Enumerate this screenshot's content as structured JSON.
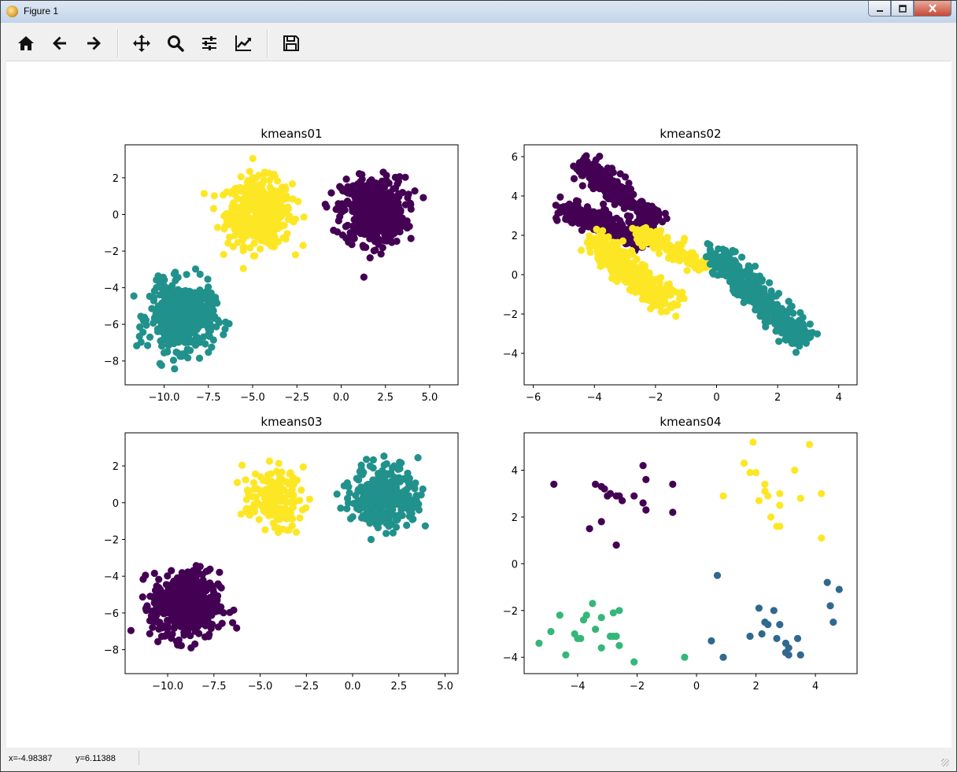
{
  "window": {
    "title": "Figure 1",
    "buttons": [
      "minimize",
      "maximize",
      "close"
    ]
  },
  "toolbar": {
    "items": [
      {
        "name": "home-icon",
        "tooltip": "Home"
      },
      {
        "name": "back-arrow-icon",
        "tooltip": "Back"
      },
      {
        "name": "forward-arrow-icon",
        "tooltip": "Forward"
      },
      {
        "name": "pan-icon",
        "tooltip": "Pan"
      },
      {
        "name": "zoom-icon",
        "tooltip": "Zoom"
      },
      {
        "name": "subplots-icon",
        "tooltip": "Subplots"
      },
      {
        "name": "customize-icon",
        "tooltip": "Customize"
      },
      {
        "name": "save-icon",
        "tooltip": "Save"
      }
    ]
  },
  "status": {
    "x": "x=-4.98387",
    "y": "y=6.11388"
  },
  "colors": {
    "viridis0": "#440154",
    "viridis1": "#31688e",
    "viridis_mid": "#21918c",
    "viridis2": "#35b779",
    "viridis3": "#fde725",
    "axis": "#000000",
    "background": "#ffffff"
  },
  "chart_data": [
    {
      "type": "scatter",
      "title": "kmeans01",
      "xlim": [
        -12.2,
        6.6
      ],
      "ylim": [
        -9.3,
        3.8
      ],
      "xticks": [
        -10.0,
        -7.5,
        -5.0,
        -2.5,
        0.0,
        2.5,
        5.0
      ],
      "xtick_labels": [
        "−10.0",
        "−7.5",
        "−5.0",
        "−2.5",
        "0.0",
        "2.5",
        "5.0"
      ],
      "yticks": [
        2,
        0,
        -2,
        -4,
        -6,
        -8
      ],
      "ytick_labels": [
        "2",
        "0",
        "−2",
        "−4",
        "−6",
        "−8"
      ],
      "grid": false,
      "series": [
        {
          "color": "#fde725",
          "center": [
            -4.6,
            0.1
          ],
          "spread": [
            0.9,
            0.9
          ],
          "count": 500
        },
        {
          "color": "#440154",
          "center": [
            1.8,
            0.2
          ],
          "spread": [
            0.9,
            0.9
          ],
          "count": 500
        },
        {
          "color": "#21918c",
          "center": [
            -9.0,
            -5.6
          ],
          "spread": [
            0.9,
            0.9
          ],
          "count": 500
        }
      ]
    },
    {
      "type": "scatter",
      "title": "kmeans02",
      "xlim": [
        -6.3,
        4.6
      ],
      "ylim": [
        -5.6,
        6.6
      ],
      "xticks": [
        -6,
        -4,
        -2,
        0,
        2,
        4
      ],
      "xtick_labels": [
        "−6",
        "−4",
        "−2",
        "0",
        "2",
        "4"
      ],
      "yticks": [
        6,
        4,
        2,
        0,
        -2,
        -4
      ],
      "ytick_labels": [
        "6",
        "4",
        "2",
        "0",
        "−2",
        "−4"
      ],
      "grid": false,
      "series": [
        {
          "color": "#440154",
          "segment": [
            [
              -5.0,
              3.4
            ],
            [
              -2.3,
              1.7
            ]
          ],
          "width": 0.25,
          "count": 300
        },
        {
          "color": "#440154",
          "segment": [
            [
              -4.4,
              5.6
            ],
            [
              -2.0,
              2.7
            ]
          ],
          "width": 0.25,
          "count": 300
        },
        {
          "color": "#fde725",
          "segment": [
            [
              -4.0,
              1.8
            ],
            [
              -1.5,
              -1.6
            ]
          ],
          "width": 0.3,
          "count": 350
        },
        {
          "color": "#fde725",
          "segment": [
            [
              -2.6,
              2.3
            ],
            [
              -0.4,
              0.4
            ]
          ],
          "width": 0.2,
          "count": 150
        },
        {
          "color": "#21918c",
          "segment": [
            [
              0.0,
              1.0
            ],
            [
              2.8,
              -3.3
            ]
          ],
          "width": 0.25,
          "count": 450
        }
      ]
    },
    {
      "type": "scatter",
      "title": "kmeans03",
      "xlim": [
        -12.3,
        5.7
      ],
      "ylim": [
        -9.3,
        3.8
      ],
      "xticks": [
        -10.0,
        -7.5,
        -5.0,
        -2.5,
        0.0,
        2.5,
        5.0
      ],
      "xtick_labels": [
        "−10.0",
        "−7.5",
        "−5.0",
        "−2.5",
        "0.0",
        "2.5",
        "5.0"
      ],
      "yticks": [
        2,
        0,
        -2,
        -4,
        -6,
        -8
      ],
      "ytick_labels": [
        "2",
        "0",
        "−2",
        "−4",
        "−6",
        "−8"
      ],
      "grid": false,
      "series": [
        {
          "color": "#fde725",
          "center": [
            -4.3,
            0.2
          ],
          "spread": [
            0.8,
            0.8
          ],
          "count": 150
        },
        {
          "color": "#21918c",
          "center": [
            1.8,
            0.3
          ],
          "spread": [
            0.9,
            0.9
          ],
          "count": 300
        },
        {
          "color": "#440154",
          "center": [
            -9.0,
            -5.6
          ],
          "spread": [
            0.9,
            0.9
          ],
          "count": 500
        }
      ]
    },
    {
      "type": "scatter",
      "title": "kmeans04",
      "xlim": [
        -5.8,
        5.4
      ],
      "ylim": [
        -4.7,
        5.6
      ],
      "xticks": [
        -4,
        -2,
        0,
        2,
        4
      ],
      "xtick_labels": [
        "−4",
        "−2",
        "0",
        "2",
        "4"
      ],
      "yticks": [
        4,
        2,
        0,
        -2,
        -4
      ],
      "ytick_labels": [
        "4",
        "2",
        "0",
        "−2",
        "−4"
      ],
      "grid": false,
      "series": [
        {
          "color": "#440154",
          "points": [
            [
              -4.8,
              3.4
            ],
            [
              -3.4,
              3.4
            ],
            [
              -3.2,
              3.3
            ],
            [
              -3.1,
              3.2
            ],
            [
              -2.9,
              3.0
            ],
            [
              -2.7,
              2.9
            ],
            [
              -2.6,
              2.9
            ],
            [
              -2.5,
              2.7
            ],
            [
              -1.8,
              4.2
            ],
            [
              -1.7,
              3.6
            ],
            [
              -1.8,
              2.6
            ],
            [
              -1.7,
              2.3
            ],
            [
              -0.8,
              3.4
            ],
            [
              -0.8,
              2.2
            ],
            [
              -3.2,
              1.8
            ],
            [
              -3.6,
              1.5
            ],
            [
              -2.7,
              0.8
            ],
            [
              -3.0,
              2.9
            ],
            [
              -2.1,
              2.9
            ]
          ]
        },
        {
          "color": "#fde725",
          "points": [
            [
              1.9,
              5.2
            ],
            [
              3.8,
              5.1
            ],
            [
              1.6,
              4.3
            ],
            [
              1.8,
              3.9
            ],
            [
              2.0,
              3.9
            ],
            [
              3.3,
              4.0
            ],
            [
              2.3,
              3.4
            ],
            [
              2.3,
              3.1
            ],
            [
              2.4,
              2.9
            ],
            [
              0.9,
              2.9
            ],
            [
              2.1,
              2.7
            ],
            [
              2.8,
              3.0
            ],
            [
              2.8,
              2.5
            ],
            [
              3.5,
              2.8
            ],
            [
              4.2,
              3.0
            ],
            [
              2.5,
              2.0
            ],
            [
              2.7,
              1.6
            ],
            [
              2.8,
              1.6
            ],
            [
              4.2,
              1.1
            ]
          ]
        },
        {
          "color": "#31688e",
          "points": [
            [
              0.7,
              -0.5
            ],
            [
              4.4,
              -0.8
            ],
            [
              4.8,
              -1.1
            ],
            [
              4.5,
              -1.8
            ],
            [
              2.1,
              -1.9
            ],
            [
              2.6,
              -2.0
            ],
            [
              2.3,
              -2.5
            ],
            [
              2.8,
              -2.6
            ],
            [
              4.6,
              -2.5
            ],
            [
              2.4,
              -2.6
            ],
            [
              1.8,
              -3.1
            ],
            [
              2.2,
              -3.0
            ],
            [
              2.7,
              -3.2
            ],
            [
              3.4,
              -3.2
            ],
            [
              3.0,
              -3.4
            ],
            [
              3.1,
              -3.6
            ],
            [
              3.0,
              -3.8
            ],
            [
              3.1,
              -3.9
            ],
            [
              3.5,
              -3.9
            ],
            [
              0.5,
              -3.3
            ],
            [
              0.9,
              -4.0
            ]
          ]
        },
        {
          "color": "#35b779",
          "points": [
            [
              -5.3,
              -3.4
            ],
            [
              -4.9,
              -2.9
            ],
            [
              -4.6,
              -2.2
            ],
            [
              -4.4,
              -3.9
            ],
            [
              -4.1,
              -3.0
            ],
            [
              -4.0,
              -3.2
            ],
            [
              -3.9,
              -3.2
            ],
            [
              -3.8,
              -2.4
            ],
            [
              -3.7,
              -2.2
            ],
            [
              -3.5,
              -1.7
            ],
            [
              -3.4,
              -2.8
            ],
            [
              -3.2,
              -2.3
            ],
            [
              -3.2,
              -3.6
            ],
            [
              -2.9,
              -3.1
            ],
            [
              -2.8,
              -3.1
            ],
            [
              -2.7,
              -3.1
            ],
            [
              -2.6,
              -2.0
            ],
            [
              -2.6,
              -3.5
            ],
            [
              -2.8,
              -2.1
            ],
            [
              -2.1,
              -4.2
            ],
            [
              -0.4,
              -4.0
            ]
          ]
        }
      ]
    }
  ]
}
